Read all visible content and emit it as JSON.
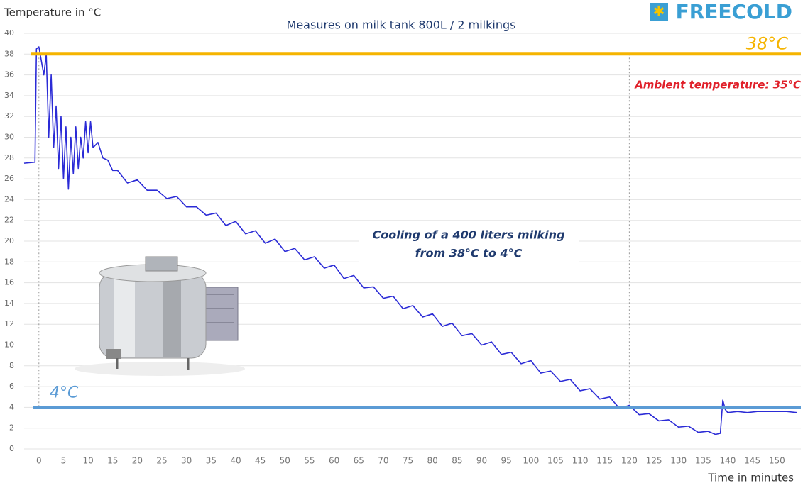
{
  "logo": "FREECOLD",
  "chart_data": {
    "type": "line",
    "title": "Measures on milk tank 800L / 2 milkings",
    "y_label": "Temperature in °C",
    "x_label": "Time in minutes",
    "ambient_label": "Ambient temperature: 35°C",
    "cooling_label": [
      "Cooling of a 400 liters milking",
      "from 38°C to 4°C"
    ],
    "color": "#2b2bd6",
    "grid": true,
    "xlim": [
      -3,
      154
    ],
    "ylim": [
      0,
      40
    ],
    "xticks": [
      0,
      5,
      10,
      15,
      20,
      25,
      30,
      35,
      40,
      45,
      50,
      55,
      60,
      65,
      70,
      75,
      80,
      85,
      90,
      95,
      100,
      105,
      110,
      115,
      120,
      125,
      130,
      135,
      140,
      145,
      150
    ],
    "yticks": [
      0,
      2,
      4,
      6,
      8,
      10,
      12,
      14,
      16,
      18,
      20,
      22,
      24,
      26,
      28,
      30,
      32,
      34,
      36,
      38,
      40
    ],
    "hlines": [
      {
        "value": 38,
        "label": "38°C",
        "color": "#f5b400"
      },
      {
        "value": 4,
        "label": "4°C",
        "color": "#5b9bd5"
      }
    ],
    "vlines": [
      0,
      120
    ],
    "x": [
      -3,
      -0.8,
      -0.5,
      0,
      1,
      1.5,
      2,
      2.5,
      3,
      3.5,
      4,
      4.5,
      5,
      5.5,
      6,
      6.5,
      7,
      7.5,
      8,
      8.5,
      9,
      9.5,
      10,
      10.5,
      11,
      12,
      13,
      14,
      15,
      16,
      18,
      20,
      22,
      24,
      26,
      28,
      30,
      32,
      34,
      36,
      38,
      40,
      42,
      44,
      46,
      48,
      50,
      52,
      54,
      56,
      58,
      60,
      62,
      64,
      66,
      68,
      70,
      72,
      74,
      76,
      78,
      80,
      82,
      84,
      86,
      88,
      90,
      92,
      94,
      96,
      98,
      100,
      102,
      104,
      106,
      108,
      110,
      112,
      114,
      116,
      118,
      120,
      122,
      124,
      126,
      128,
      130,
      132,
      134,
      136,
      137.5,
      138.5,
      139,
      139.5,
      140,
      142,
      144,
      146,
      148,
      150,
      152,
      154
    ],
    "values": [
      27.5,
      27.6,
      38.5,
      38.7,
      36,
      38,
      30,
      36,
      29,
      33,
      27,
      32,
      26,
      31,
      25,
      30,
      26.5,
      31,
      27,
      30,
      28,
      31.5,
      28.5,
      31.5,
      29,
      29.5,
      28,
      27.8,
      26.8,
      26.8,
      25.6,
      25.9,
      24.9,
      24.9,
      24.1,
      24.3,
      23.3,
      23.3,
      22.5,
      22.7,
      21.5,
      21.9,
      20.7,
      21.0,
      19.8,
      20.2,
      19.0,
      19.3,
      18.2,
      18.5,
      17.4,
      17.7,
      16.4,
      16.7,
      15.5,
      15.6,
      14.5,
      14.7,
      13.5,
      13.8,
      12.7,
      13.0,
      11.8,
      12.1,
      10.9,
      11.1,
      10.0,
      10.3,
      9.1,
      9.3,
      8.2,
      8.5,
      7.3,
      7.5,
      6.5,
      6.7,
      5.6,
      5.8,
      4.8,
      5.0,
      3.9,
      4.2,
      3.3,
      3.4,
      2.7,
      2.8,
      2.1,
      2.2,
      1.6,
      1.7,
      1.4,
      1.5,
      4.7,
      3.8,
      3.5,
      3.6,
      3.5,
      3.6,
      3.6,
      3.6,
      3.6,
      3.5
    ]
  }
}
